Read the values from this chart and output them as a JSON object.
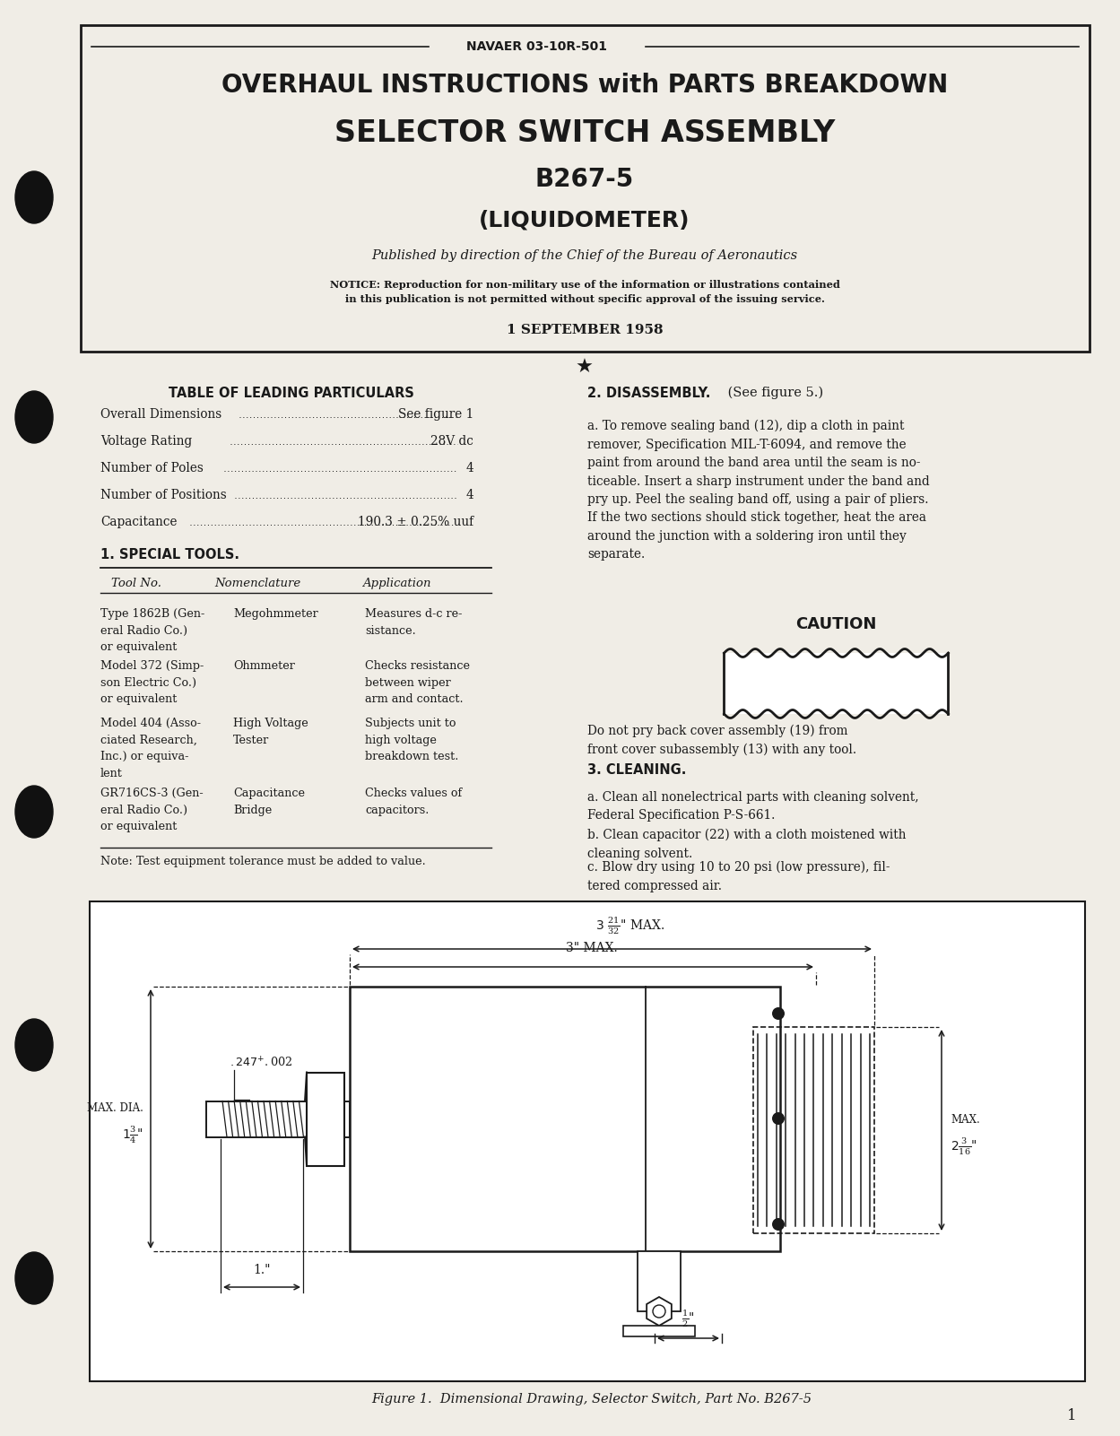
{
  "bg_color": "#f0ede6",
  "text_color": "#1a1a1a",
  "header_doc_number": "NAVAER 03-10R-501",
  "title_line1": "OVERHAUL INSTRUCTIONS with PARTS BREAKDOWN",
  "title_line2": "SELECTOR SWITCH ASSEMBLY",
  "title_line3": "B267-5",
  "title_line4": "(LIQUIDOMETER)",
  "published_line": "Published by direction of the Chief of the Bureau of Aeronautics",
  "notice_line1": "NOTICE: Reproduction for non-military use of the information or illustrations contained",
  "notice_line2": "in this publication is not permitted without specific approval of the issuing service.",
  "date_text": "1 SEPTEMBER 1958",
  "table_title": "TABLE OF LEADING PARTICULARS",
  "particulars": [
    [
      "Overall Dimensions",
      "See figure 1"
    ],
    [
      "Voltage Rating",
      "28V dc"
    ],
    [
      "Number of Poles",
      "4"
    ],
    [
      "Number of Positions",
      "4"
    ],
    [
      "Capacitance",
      "190.3 ± 0.25% uuf"
    ]
  ],
  "special_tools_title": "1. SPECIAL TOOLS.",
  "tools_header": [
    "Tool No.",
    "Nomenclature",
    "Application"
  ],
  "tools_data": [
    [
      "Type 1862B (Gen-\neral Radio Co.)\nor equivalent",
      "Megohmmeter",
      "Measures d-c re-\nsistance."
    ],
    [
      "Model 372 (Simp-\nson Electric Co.)\nor equivalent",
      "Ohmmeter",
      "Checks resistance\nbetween wiper\narm and contact."
    ],
    [
      "Model 404 (Asso-\nciated Research,\nInc.) or equiva-\nlent",
      "High Voltage\nTester",
      "Subjects unit to\nhigh voltage\nbreakdown test."
    ],
    [
      "GR716CS-3 (Gen-\neral Radio Co.)\nor equivalent",
      "Capacitance\nBridge",
      "Checks values of\ncapacitors."
    ]
  ],
  "tools_note": "Note: Test equipment tolerance must be added to value.",
  "disassembly_title": "2. DISASSEMBLY.",
  "disassembly_subtitle": " (See figure 5.)",
  "disassembly_text": "a. To remove sealing band (12), dip a cloth in paint\nremover, Specification MIL-T-6094, and remove the\npaint from around the band area until the seam is no-\nticeable. Insert a sharp instrument under the band and\npry up. Peel the sealing band off, using a pair of pliers.\nIf the two sections should stick together, heat the area\naround the junction with a soldering iron until they\nseparate.",
  "caution_label": "CAUTION",
  "caution_text": "Do not pry back cover assembly (19) from\nfront cover subassembly (13) with any tool.",
  "cleaning_title": "3. CLEANING.",
  "cleaning_text_a": "a. Clean all nonelectrical parts with cleaning solvent,\nFederal Specification P-S-661.",
  "cleaning_text_b": "b. Clean capacitor (22) with a cloth moistened with\ncleaning solvent.",
  "cleaning_text_c": "c. Blow dry using 10 to 20 psi (low pressure), fil-\ntered compressed air.",
  "figure_caption": "Figure 1.  Dimensional Drawing, Selector Switch, Part No. B267-5",
  "page_number": "1"
}
